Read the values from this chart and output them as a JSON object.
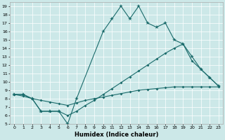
{
  "xlabel": "Humidex (Indice chaleur)",
  "bg_color": "#cce8e8",
  "line_color": "#1a6b6b",
  "xlim": [
    -0.5,
    23.5
  ],
  "ylim": [
    5,
    19.5
  ],
  "xticks": [
    0,
    1,
    2,
    3,
    4,
    5,
    6,
    7,
    8,
    9,
    10,
    11,
    12,
    13,
    14,
    15,
    16,
    17,
    18,
    19,
    20,
    21,
    22,
    23
  ],
  "yticks": [
    5,
    6,
    7,
    8,
    9,
    10,
    11,
    12,
    13,
    14,
    15,
    16,
    17,
    18,
    19
  ],
  "line1_x": [
    0,
    1,
    2,
    3,
    4,
    5,
    6,
    7,
    8,
    9,
    10,
    11,
    12,
    13,
    14,
    15,
    16,
    17,
    18,
    19,
    20,
    21,
    22,
    23
  ],
  "line1_y": [
    8.5,
    8.3,
    8.0,
    7.8,
    7.6,
    7.4,
    7.2,
    7.5,
    7.8,
    8.0,
    8.2,
    8.4,
    8.6,
    8.8,
    9.0,
    9.1,
    9.2,
    9.3,
    9.4,
    9.4,
    9.4,
    9.4,
    9.4,
    9.4
  ],
  "line2_x": [
    0,
    1,
    2,
    3,
    4,
    5,
    6,
    7,
    8,
    9,
    10,
    11,
    12,
    13,
    14,
    15,
    16,
    17,
    18,
    19,
    20,
    21,
    22,
    23
  ],
  "line2_y": [
    8.5,
    8.5,
    8.0,
    6.5,
    6.5,
    6.5,
    6.0,
    6.5,
    7.2,
    7.8,
    8.5,
    9.2,
    9.9,
    10.6,
    11.3,
    12.0,
    12.7,
    13.4,
    14.0,
    14.5,
    12.5,
    11.5,
    10.5,
    9.5
  ],
  "line3_x": [
    0,
    1,
    2,
    3,
    4,
    5,
    6,
    7,
    10,
    11,
    12,
    13,
    14,
    15,
    16,
    17,
    18,
    19,
    20,
    21,
    22,
    23
  ],
  "line3_y": [
    8.5,
    8.5,
    8.0,
    6.5,
    6.5,
    6.5,
    5.0,
    8.0,
    16.0,
    17.5,
    19.0,
    17.5,
    19.0,
    17.0,
    16.5,
    17.0,
    15.0,
    14.5,
    13.0,
    11.5,
    10.5,
    9.5
  ]
}
